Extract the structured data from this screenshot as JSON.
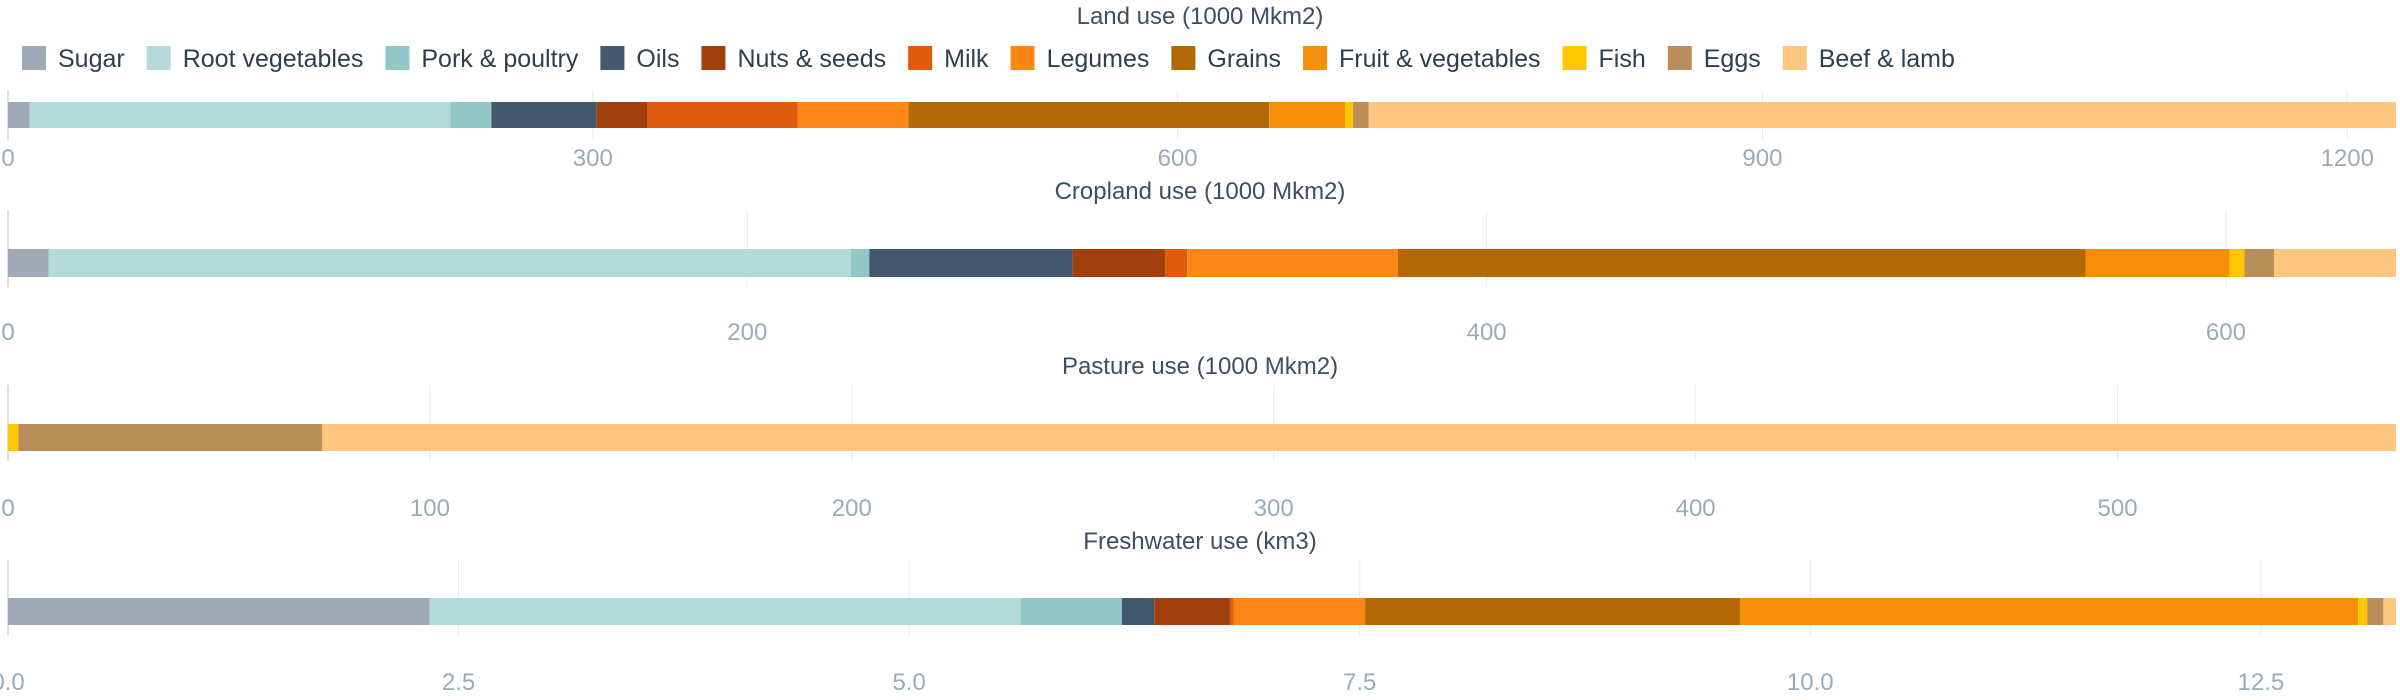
{
  "colors": {
    "Sugar": "#a0aab7",
    "Root vegetables": "#b3d9d9",
    "Pork & poultry": "#91c7c7",
    "Oils": "#44596e",
    "Nuts & seeds": "#a0410d",
    "Milk": "#e05c0d",
    "Legumes": "#fc8617",
    "Grains": "#b36805",
    "Fruit & vegetables": "#f58e0b",
    "Fish": "#ffc700",
    "Eggs": "#b98e5b",
    "Beef & lamb": "#fdc67e"
  },
  "legend": [
    "Sugar",
    "Root vegetables",
    "Pork & poultry",
    "Oils",
    "Nuts & seeds",
    "Milk",
    "Legumes",
    "Grains",
    "Fruit & vegetables",
    "Fish",
    "Eggs",
    "Beef & lamb"
  ],
  "chart_data": [
    {
      "type": "bar",
      "orientation": "horizontal-stacked",
      "title": "Land use (1000 Mkm2)",
      "xlim": [
        0,
        1225
      ],
      "ticks": [
        0,
        300,
        600,
        900,
        1200
      ],
      "tick_labels": [
        "0",
        "300",
        "600",
        "900",
        "1200"
      ],
      "grid": true,
      "series": [
        {
          "name": "Sugar",
          "value": 11
        },
        {
          "name": "Root vegetables",
          "value": 216
        },
        {
          "name": "Pork & poultry",
          "value": 21
        },
        {
          "name": "Oils",
          "value": 54
        },
        {
          "name": "Nuts & seeds",
          "value": 26
        },
        {
          "name": "Milk",
          "value": 77
        },
        {
          "name": "Legumes",
          "value": 57
        },
        {
          "name": "Grains",
          "value": 185
        },
        {
          "name": "Fruit & vegetables",
          "value": 39
        },
        {
          "name": "Fish",
          "value": 4
        },
        {
          "name": "Eggs",
          "value": 8
        },
        {
          "name": "Beef & lamb",
          "value": 527
        }
      ]
    },
    {
      "type": "bar",
      "orientation": "horizontal-stacked",
      "title": "Cropland use (1000 Mkm2)",
      "xlim": [
        0,
        646
      ],
      "ticks": [
        0,
        200,
        400,
        600
      ],
      "tick_labels": [
        "0",
        "200",
        "400",
        "600"
      ],
      "grid": true,
      "series": [
        {
          "name": "Sugar",
          "value": 11
        },
        {
          "name": "Root vegetables",
          "value": 217
        },
        {
          "name": "Pork & poultry",
          "value": 5
        },
        {
          "name": "Oils",
          "value": 55
        },
        {
          "name": "Nuts & seeds",
          "value": 25
        },
        {
          "name": "Milk",
          "value": 6
        },
        {
          "name": "Legumes",
          "value": 57
        },
        {
          "name": "Grains",
          "value": 186
        },
        {
          "name": "Fruit & vegetables",
          "value": 39
        },
        {
          "name": "Fish",
          "value": 4
        },
        {
          "name": "Eggs",
          "value": 8
        },
        {
          "name": "Beef & lamb",
          "value": 33
        }
      ]
    },
    {
      "type": "bar",
      "orientation": "horizontal-stacked",
      "title": "Pasture use (1000 Mkm2)",
      "xlim": [
        0,
        566
      ],
      "ticks": [
        0,
        100,
        200,
        300,
        400,
        500
      ],
      "tick_labels": [
        "0",
        "100",
        "200",
        "300",
        "400",
        "500"
      ],
      "grid": true,
      "series": [
        {
          "name": "Fish",
          "value": 2.5
        },
        {
          "name": "Eggs",
          "value": 72
        },
        {
          "name": "Beef & lamb",
          "value": 491.5
        }
      ]
    },
    {
      "type": "bar",
      "orientation": "horizontal-stacked",
      "title": "Freshwater use (km3)",
      "xlim": [
        0,
        13.25
      ],
      "ticks": [
        0,
        2.5,
        5,
        7.5,
        10,
        12.5
      ],
      "tick_labels": [
        "0.0",
        "2.5",
        "5.0",
        "7.5",
        "10.0",
        "12.5"
      ],
      "grid": true,
      "series": [
        {
          "name": "Sugar",
          "value": 2.34
        },
        {
          "name": "Root vegetables",
          "value": 3.28
        },
        {
          "name": "Pork & poultry",
          "value": 0.56
        },
        {
          "name": "Oils",
          "value": 0.18
        },
        {
          "name": "Nuts & seeds",
          "value": 0.42
        },
        {
          "name": "Milk",
          "value": 0.02
        },
        {
          "name": "Legumes",
          "value": 0.73
        },
        {
          "name": "Grains",
          "value": 2.08
        },
        {
          "name": "Fruit & vegetables",
          "value": 3.43
        },
        {
          "name": "Fish",
          "value": 0.05
        },
        {
          "name": "Eggs",
          "value": 0.09
        },
        {
          "name": "Beef & lamb",
          "value": 0.07
        }
      ]
    }
  ]
}
